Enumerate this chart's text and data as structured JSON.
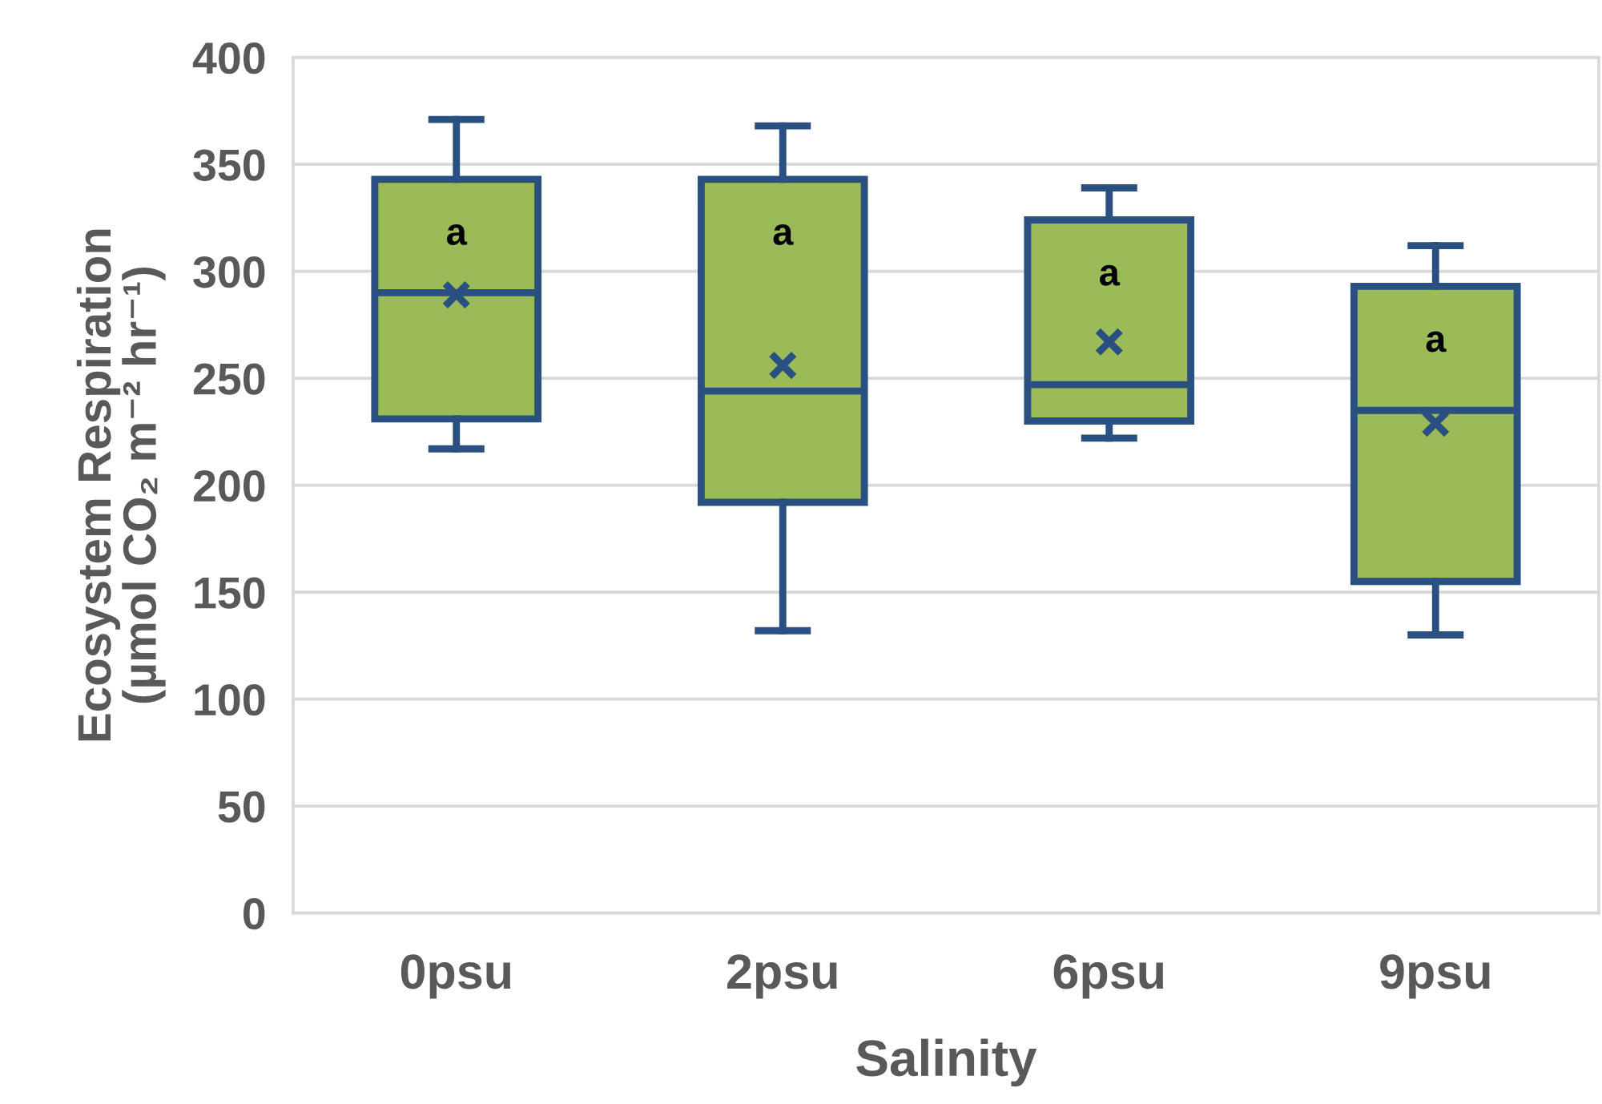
{
  "chart_data": {
    "type": "box",
    "xlabel": "Salinity",
    "ylabel": "Ecosystem Respiration\n(µmol CO₂ m⁻² hr⁻¹)",
    "categories": [
      "0psu",
      "2psu",
      "6psu",
      "9psu"
    ],
    "color": "#9bbb59",
    "boxes": [
      {
        "low": 217,
        "q1": 231,
        "median": 290,
        "q3": 343,
        "high": 371,
        "mean": 289
      },
      {
        "low": 132,
        "q1": 192,
        "median": 244,
        "q3": 343,
        "high": 368,
        "mean": 256
      },
      {
        "low": 222,
        "q1": 230,
        "median": 247,
        "q3": 324,
        "high": 339,
        "mean": 267
      },
      {
        "low": 130,
        "q1": 155,
        "median": 235,
        "q3": 293,
        "high": 312,
        "mean": 229
      }
    ],
    "marker": "cross",
    "annotations": [
      "a",
      "a",
      "a",
      "a"
    ],
    "ylim": [
      0,
      400
    ],
    "yticks": [
      0,
      50,
      100,
      150,
      200,
      250,
      300,
      350,
      400
    ],
    "grid": "y"
  }
}
